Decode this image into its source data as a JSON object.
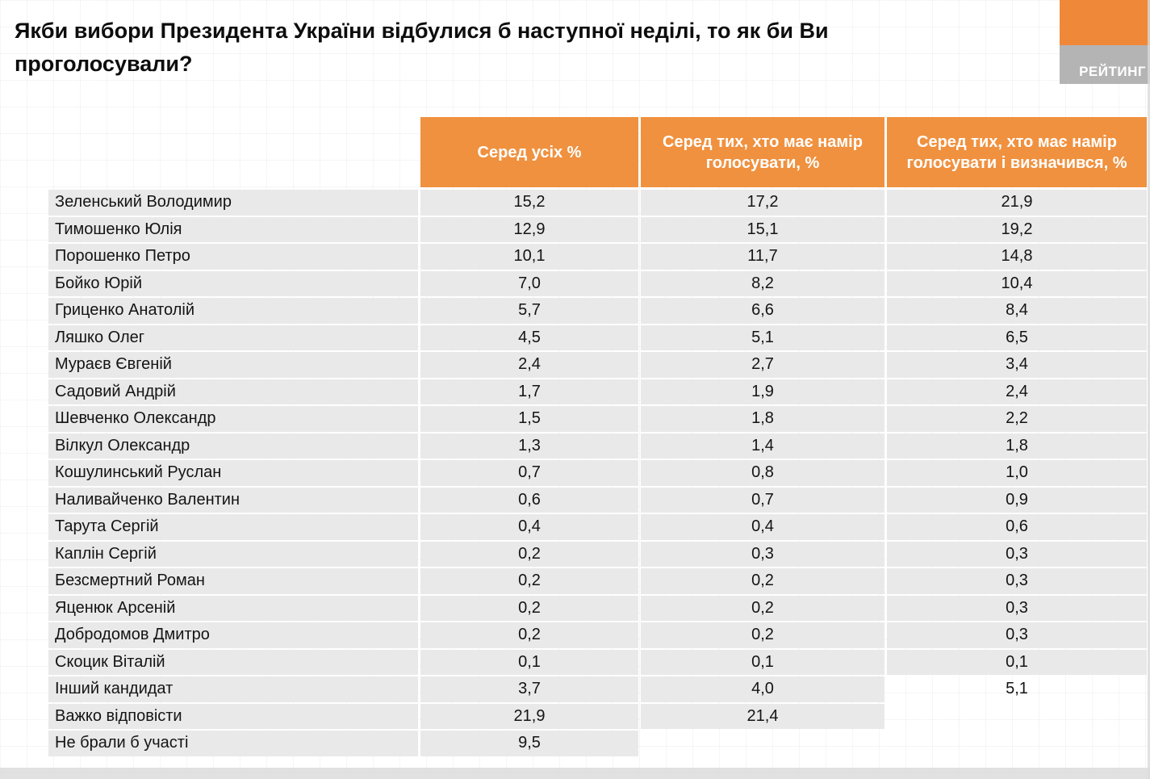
{
  "title": "Якби вибори Президента України відбулися б наступної неділі, то як би Ви проголосували?",
  "logo": {
    "text": "РЕЙТИНГ"
  },
  "table": {
    "headers": [
      "Серед усіх %",
      "Серед тих, хто має намір голосувати, %",
      "Серед тих, хто має намір голосувати і визначився, %"
    ],
    "rows": [
      {
        "name": "Зеленський Володимир",
        "values": [
          "15,2",
          "17,2",
          "21,9"
        ]
      },
      {
        "name": "Тимошенко Юлія",
        "values": [
          "12,9",
          "15,1",
          "19,2"
        ]
      },
      {
        "name": "Порошенко Петро",
        "values": [
          "10,1",
          "11,7",
          "14,8"
        ]
      },
      {
        "name": "Бойко Юрій",
        "values": [
          "7,0",
          "8,2",
          "10,4"
        ]
      },
      {
        "name": "Гриценко Анатолій",
        "values": [
          "5,7",
          "6,6",
          "8,4"
        ]
      },
      {
        "name": "Ляшко Олег",
        "values": [
          "4,5",
          "5,1",
          "6,5"
        ]
      },
      {
        "name": "Мураєв Євгеній",
        "values": [
          "2,4",
          "2,7",
          "3,4"
        ]
      },
      {
        "name": "Садовий Андрій",
        "values": [
          "1,7",
          "1,9",
          "2,4"
        ]
      },
      {
        "name": "Шевченко Олександр",
        "values": [
          "1,5",
          "1,8",
          "2,2"
        ]
      },
      {
        "name": "Вілкул Олександр",
        "values": [
          "1,3",
          "1,4",
          "1,8"
        ]
      },
      {
        "name": "Кошулинський Руслан",
        "values": [
          "0,7",
          "0,8",
          "1,0"
        ]
      },
      {
        "name": "Наливайченко Валентин",
        "values": [
          "0,6",
          "0,7",
          "0,9"
        ]
      },
      {
        "name": "Тарута Сергій",
        "values": [
          "0,4",
          "0,4",
          "0,6"
        ]
      },
      {
        "name": "Каплін Сергій",
        "values": [
          "0,2",
          "0,3",
          "0,3"
        ]
      },
      {
        "name": "Безсмертний Роман",
        "values": [
          "0,2",
          "0,2",
          "0,3"
        ]
      },
      {
        "name": "Яценюк Арсеній",
        "values": [
          "0,2",
          "0,2",
          "0,3"
        ]
      },
      {
        "name": "Добродомов Дмитро",
        "values": [
          "0,2",
          "0,2",
          "0,3"
        ]
      },
      {
        "name": "Скоцик Віталій",
        "values": [
          "0,1",
          "0,1",
          "0,1"
        ]
      },
      {
        "name": "Інший кандидат",
        "values": [
          "3,7",
          "4,0",
          "5,1"
        ],
        "plain_cells": [
          2
        ]
      },
      {
        "name": "Важко відповісти",
        "values": [
          "21,9",
          "21,4",
          ""
        ]
      },
      {
        "name": "Не брали б участі",
        "values": [
          "9,5",
          "",
          ""
        ]
      }
    ]
  },
  "colors": {
    "accent_orange": "#f0913f",
    "row_gray": "#e9e9e9",
    "logo_gray": "#b4b4b4"
  },
  "chart_data": {
    "type": "table",
    "title": "Якби вибори Президента України відбулися б наступної неділі, то як би Ви проголосували?",
    "columns": [
      "Серед усіх %",
      "Серед тих, хто має намір голосувати, %",
      "Серед тих, хто має намір голосувати і визначився, %"
    ],
    "categories": [
      "Зеленський Володимир",
      "Тимошенко Юлія",
      "Порошенко Петро",
      "Бойко Юрій",
      "Гриценко Анатолій",
      "Ляшко Олег",
      "Мураєв Євгеній",
      "Садовий Андрій",
      "Шевченко Олександр",
      "Вілкул Олександр",
      "Кошулинський Руслан",
      "Наливайченко Валентин",
      "Тарута Сергій",
      "Каплін Сергій",
      "Безсмертний Роман",
      "Яценюк Арсеній",
      "Добродомов Дмитро",
      "Скоцик Віталій",
      "Інший кандидат",
      "Важко відповісти",
      "Не брали б участі"
    ],
    "values": [
      [
        15.2,
        17.2,
        21.9
      ],
      [
        12.9,
        15.1,
        19.2
      ],
      [
        10.1,
        11.7,
        14.8
      ],
      [
        7.0,
        8.2,
        10.4
      ],
      [
        5.7,
        6.6,
        8.4
      ],
      [
        4.5,
        5.1,
        6.5
      ],
      [
        2.4,
        2.7,
        3.4
      ],
      [
        1.7,
        1.9,
        2.4
      ],
      [
        1.5,
        1.8,
        2.2
      ],
      [
        1.3,
        1.4,
        1.8
      ],
      [
        0.7,
        0.8,
        1.0
      ],
      [
        0.6,
        0.7,
        0.9
      ],
      [
        0.4,
        0.4,
        0.6
      ],
      [
        0.2,
        0.3,
        0.3
      ],
      [
        0.2,
        0.2,
        0.3
      ],
      [
        0.2,
        0.2,
        0.3
      ],
      [
        0.2,
        0.2,
        0.3
      ],
      [
        0.1,
        0.1,
        0.1
      ],
      [
        3.7,
        4.0,
        5.1
      ],
      [
        21.9,
        21.4,
        null
      ],
      [
        9.5,
        null,
        null
      ]
    ]
  }
}
